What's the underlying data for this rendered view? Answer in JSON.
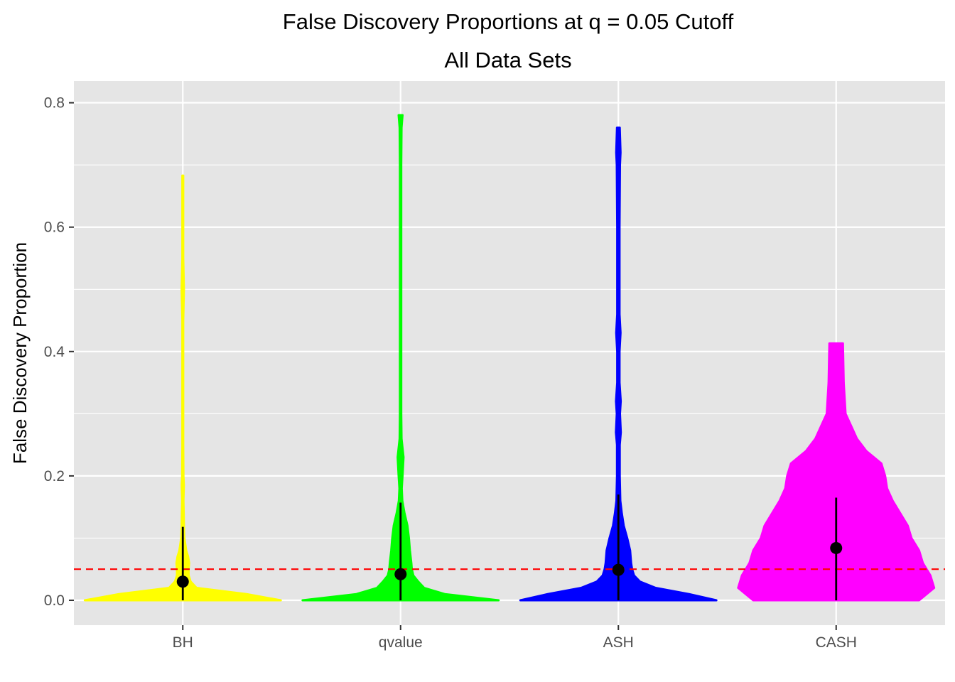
{
  "chart_data": {
    "type": "violin",
    "title": "False Discovery Proportions at q = 0.05 Cutoff",
    "subtitle": "All Data Sets",
    "xlabel": "",
    "ylabel": "False Discovery Proportion",
    "ylim": [
      -0.04,
      0.835
    ],
    "yticks": [
      0.0,
      0.2,
      0.4,
      0.6,
      0.8
    ],
    "ytick_labels": [
      "0.0",
      "0.2",
      "0.4",
      "0.6",
      "0.8"
    ],
    "categories": [
      "BH",
      "qvalue",
      "ASH",
      "CASH"
    ],
    "grid": true,
    "reference_line": {
      "y": 0.05,
      "color": "#ff0000",
      "style": "dashed"
    },
    "panel_background": "#e5e5e5",
    "grid_color": "#ffffff",
    "summary_color": "#000000",
    "series": [
      {
        "category": "BH",
        "color": "#ffff00",
        "point": 0.03,
        "range": [
          0.0,
          0.118
        ],
        "max": 0.683,
        "density": [
          [
            0.0,
            1.0
          ],
          [
            0.01,
            0.65
          ],
          [
            0.02,
            0.14
          ],
          [
            0.03,
            0.08
          ],
          [
            0.04,
            0.06
          ],
          [
            0.05,
            0.06
          ],
          [
            0.06,
            0.065
          ],
          [
            0.07,
            0.055
          ],
          [
            0.08,
            0.035
          ],
          [
            0.1,
            0.016
          ],
          [
            0.12,
            0.012
          ],
          [
            0.14,
            0.01
          ],
          [
            0.16,
            0.007
          ],
          [
            0.185,
            0.011
          ],
          [
            0.2,
            0.007
          ],
          [
            0.25,
            0.005
          ],
          [
            0.3,
            0.005
          ],
          [
            0.45,
            0.005
          ],
          [
            0.5,
            0.012
          ],
          [
            0.55,
            0.005
          ],
          [
            0.65,
            0.005
          ],
          [
            0.683,
            0.005
          ]
        ]
      },
      {
        "category": "qvalue",
        "color": "#00ff00",
        "point": 0.042,
        "range": [
          0.0,
          0.157
        ],
        "max": 0.78,
        "density": [
          [
            0.0,
            1.0
          ],
          [
            0.01,
            0.45
          ],
          [
            0.02,
            0.24
          ],
          [
            0.03,
            0.18
          ],
          [
            0.04,
            0.13
          ],
          [
            0.05,
            0.115
          ],
          [
            0.06,
            0.11
          ],
          [
            0.08,
            0.095
          ],
          [
            0.1,
            0.085
          ],
          [
            0.12,
            0.07
          ],
          [
            0.14,
            0.04
          ],
          [
            0.16,
            0.018
          ],
          [
            0.18,
            0.012
          ],
          [
            0.2,
            0.02
          ],
          [
            0.23,
            0.03
          ],
          [
            0.26,
            0.01
          ],
          [
            0.3,
            0.007
          ],
          [
            0.5,
            0.007
          ],
          [
            0.7,
            0.007
          ],
          [
            0.76,
            0.01
          ],
          [
            0.78,
            0.02
          ]
        ]
      },
      {
        "category": "ASH",
        "color": "#0000ff",
        "point": 0.049,
        "range": [
          0.0,
          0.17
        ],
        "max": 0.76,
        "density": [
          [
            0.0,
            1.0
          ],
          [
            0.01,
            0.72
          ],
          [
            0.02,
            0.38
          ],
          [
            0.03,
            0.22
          ],
          [
            0.04,
            0.16
          ],
          [
            0.05,
            0.14
          ],
          [
            0.06,
            0.13
          ],
          [
            0.08,
            0.12
          ],
          [
            0.1,
            0.09
          ],
          [
            0.12,
            0.055
          ],
          [
            0.14,
            0.035
          ],
          [
            0.16,
            0.02
          ],
          [
            0.2,
            0.014
          ],
          [
            0.25,
            0.014
          ],
          [
            0.27,
            0.025
          ],
          [
            0.3,
            0.016
          ],
          [
            0.32,
            0.024
          ],
          [
            0.35,
            0.012
          ],
          [
            0.4,
            0.012
          ],
          [
            0.43,
            0.022
          ],
          [
            0.46,
            0.012
          ],
          [
            0.6,
            0.012
          ],
          [
            0.7,
            0.016
          ],
          [
            0.72,
            0.022
          ],
          [
            0.76,
            0.014
          ]
        ]
      },
      {
        "category": "CASH",
        "color": "#ff00ff",
        "point": 0.084,
        "range": [
          0.0,
          0.165
        ],
        "max": 0.413,
        "density": [
          [
            0.0,
            0.22
          ],
          [
            0.01,
            0.24
          ],
          [
            0.02,
            0.26
          ],
          [
            0.04,
            0.25
          ],
          [
            0.06,
            0.23
          ],
          [
            0.08,
            0.22
          ],
          [
            0.1,
            0.2
          ],
          [
            0.12,
            0.19
          ],
          [
            0.14,
            0.17
          ],
          [
            0.16,
            0.15
          ],
          [
            0.18,
            0.135
          ],
          [
            0.2,
            0.13
          ],
          [
            0.22,
            0.12
          ],
          [
            0.24,
            0.08
          ],
          [
            0.26,
            0.055
          ],
          [
            0.28,
            0.04
          ],
          [
            0.3,
            0.025
          ],
          [
            0.35,
            0.02
          ],
          [
            0.413,
            0.018
          ]
        ]
      }
    ]
  }
}
